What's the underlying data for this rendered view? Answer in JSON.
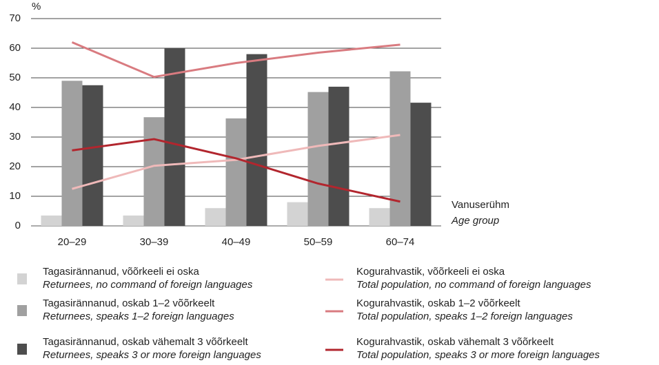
{
  "chart_data": {
    "type": "bar",
    "y_label": "%",
    "x_label": "Vanuserühm",
    "x_label_translation": "Age group",
    "categories": [
      "20–29",
      "30–39",
      "40–49",
      "50–59",
      "60–74"
    ],
    "ylim": [
      0,
      70
    ],
    "yticks": [
      0,
      10,
      20,
      30,
      40,
      50,
      60,
      70
    ],
    "grid": true,
    "series": [
      {
        "name": "Tagasirännanud, võõrkeeli ei oska",
        "translation": "Returnees, no command of foreign languages",
        "kind": "bar",
        "color": "#d3d3d3",
        "values": [
          3.5,
          3.5,
          6,
          8,
          6
        ]
      },
      {
        "name": "Tagasirännanud, oskab 1–2 võõrkeelt",
        "translation": "Returnees, speaks 1–2 foreign languages",
        "kind": "bar",
        "color": "#a0a0a0",
        "values": [
          49,
          36.7,
          36.3,
          45.2,
          52.2
        ]
      },
      {
        "name": "Tagasirännanud, oskab vähemalt 3 võõrkeelt",
        "translation": "Returnees, speaks 3 or more foreign languages",
        "kind": "bar",
        "color": "#4d4d4d",
        "values": [
          47.5,
          60,
          58,
          47,
          41.6
        ]
      },
      {
        "name": "Kogurahvastik, võõrkeeli ei oska",
        "translation": "Total population, no command of foreign languages",
        "kind": "line",
        "color": "#efb9b9",
        "values": [
          12.5,
          20.3,
          22.3,
          27,
          30.7
        ]
      },
      {
        "name": "Kogurahvastik, oskab 1–2 võõrkeelt",
        "translation": "Total population, speaks 1–2 foreign languages",
        "kind": "line",
        "color": "#d97b80",
        "values": [
          62,
          50.3,
          55,
          58.5,
          61.2
        ]
      },
      {
        "name": "Kogurahvastik, oskab vähemalt 3 võõrkeelt",
        "translation": "Total population, speaks 3 or more foreign languages",
        "kind": "line",
        "color": "#b2262e",
        "values": [
          25.5,
          29.3,
          22.8,
          14.3,
          8.2
        ]
      }
    ]
  }
}
